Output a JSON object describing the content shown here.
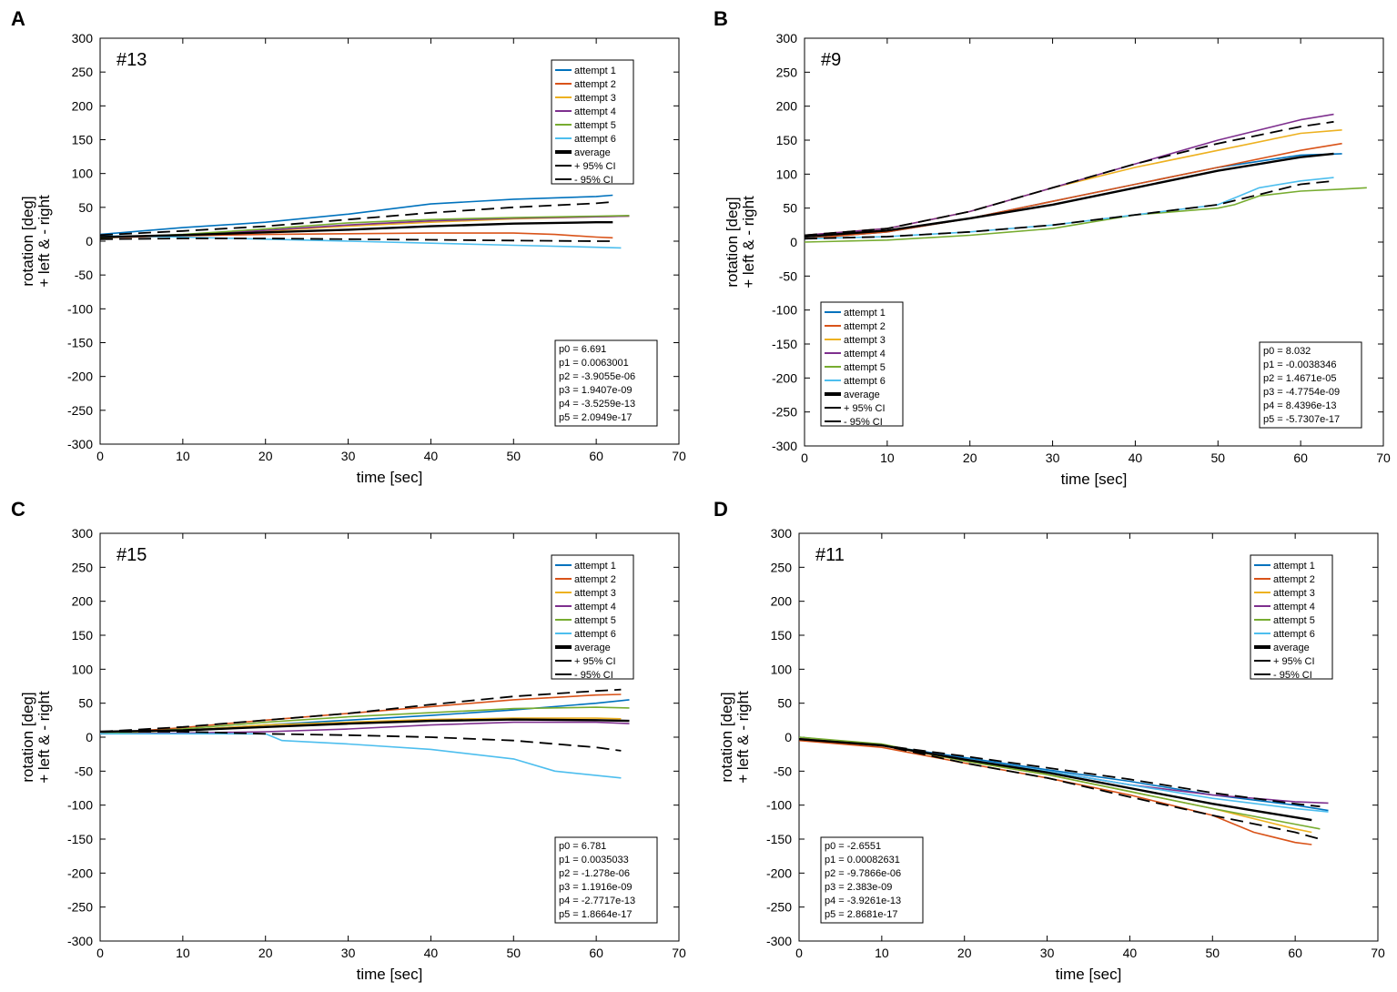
{
  "colors": {
    "attempt1": "#0072BD",
    "attempt2": "#D95319",
    "attempt3": "#EDB120",
    "attempt4": "#7E2F8E",
    "attempt5": "#77AC30",
    "attempt6": "#4DBEEE",
    "average": "#000000",
    "ci": "#000000"
  },
  "legend_labels": [
    "attempt 1",
    "attempt 2",
    "attempt 3",
    "attempt 4",
    "attempt 5",
    "attempt 6",
    "average",
    "+  95% CI",
    "- 95% CI"
  ],
  "chart_data": [
    {
      "panel": "A",
      "type": "line",
      "title": "#13",
      "xlabel": "time [sec]",
      "ylabel_line1": "rotation [deg]",
      "ylabel_line2": "+ left & - right",
      "xlim": [
        0,
        70
      ],
      "ylim": [
        -300,
        300
      ],
      "xticks": [
        0,
        10,
        20,
        30,
        40,
        50,
        60,
        70
      ],
      "yticks": [
        300,
        250,
        200,
        150,
        100,
        50,
        0,
        -50,
        -100,
        -150,
        -200,
        -250,
        -300
      ],
      "legend_position": "top-right",
      "params_position": "bottom-right",
      "params": [
        "p0 = 6.691",
        "p1 = 0.0063001",
        "p2 = -3.9055e-06",
        "p3 = 1.9407e-09",
        "p4 = -3.5259e-13",
        "p5 = 2.0949e-17"
      ],
      "series": [
        {
          "name": "attempt 1",
          "x": [
            0,
            5,
            10,
            20,
            30,
            40,
            50,
            60,
            62
          ],
          "y": [
            10,
            15,
            20,
            28,
            40,
            55,
            62,
            66,
            68
          ]
        },
        {
          "name": "attempt 2",
          "x": [
            0,
            10,
            20,
            30,
            40,
            50,
            55,
            60,
            62
          ],
          "y": [
            5,
            8,
            10,
            11,
            12,
            12,
            10,
            6,
            5
          ]
        },
        {
          "name": "attempt 3",
          "x": [
            0,
            10,
            20,
            30,
            40,
            50,
            60,
            64
          ],
          "y": [
            5,
            9,
            15,
            22,
            28,
            33,
            36,
            37
          ]
        },
        {
          "name": "attempt 4",
          "x": [
            0,
            10,
            20,
            30,
            40,
            50,
            60,
            64
          ],
          "y": [
            5,
            9,
            16,
            24,
            30,
            34,
            36,
            37
          ]
        },
        {
          "name": "attempt 5",
          "x": [
            0,
            10,
            20,
            30,
            40,
            50,
            60,
            64
          ],
          "y": [
            5,
            10,
            18,
            27,
            32,
            35,
            37,
            38
          ]
        },
        {
          "name": "attempt 6",
          "x": [
            0,
            10,
            20,
            30,
            40,
            50,
            60,
            63
          ],
          "y": [
            8,
            6,
            3,
            0,
            -3,
            -6,
            -9,
            -10
          ]
        },
        {
          "name": "average",
          "x": [
            0,
            10,
            20,
            30,
            40,
            50,
            60,
            62
          ],
          "y": [
            6,
            9,
            13,
            17,
            22,
            26,
            28,
            28
          ]
        },
        {
          "name": "+  95% CI",
          "x": [
            0,
            10,
            20,
            30,
            40,
            50,
            60,
            62
          ],
          "y": [
            9,
            15,
            22,
            32,
            42,
            50,
            56,
            58
          ]
        },
        {
          "name": "- 95% CI",
          "x": [
            0,
            10,
            20,
            30,
            40,
            50,
            60,
            62
          ],
          "y": [
            3,
            4,
            4,
            3,
            2,
            1,
            0,
            0
          ]
        }
      ]
    },
    {
      "panel": "B",
      "type": "line",
      "title": "#9",
      "xlabel": "time [sec]",
      "ylabel_line1": "rotation [deg]",
      "ylabel_line2": "+ left & - right",
      "xlim": [
        0,
        70
      ],
      "ylim": [
        -300,
        300
      ],
      "xticks": [
        0,
        10,
        20,
        30,
        40,
        50,
        60,
        70
      ],
      "yticks": [
        300,
        250,
        200,
        150,
        100,
        50,
        0,
        -50,
        -100,
        -150,
        -200,
        -250,
        -300
      ],
      "legend_position": "bottom-left",
      "params_position": "bottom-right",
      "params": [
        "p0 = 8.032",
        "p1 = -0.0038346",
        "p2 = 1.4671e-05",
        "p3 = -4.7754e-09",
        "p4 = 8.4396e-13",
        "p5 = -5.7307e-17"
      ],
      "series": [
        {
          "name": "attempt 1",
          "x": [
            0,
            10,
            20,
            30,
            40,
            50,
            60,
            65
          ],
          "y": [
            5,
            15,
            35,
            60,
            85,
            110,
            128,
            130
          ]
        },
        {
          "name": "attempt 2",
          "x": [
            0,
            10,
            20,
            30,
            40,
            50,
            60,
            65
          ],
          "y": [
            5,
            15,
            35,
            60,
            85,
            110,
            135,
            145
          ]
        },
        {
          "name": "attempt 3",
          "x": [
            0,
            10,
            20,
            30,
            40,
            50,
            60,
            65
          ],
          "y": [
            10,
            20,
            45,
            80,
            110,
            135,
            160,
            165
          ]
        },
        {
          "name": "attempt 4",
          "x": [
            0,
            10,
            20,
            30,
            40,
            50,
            60,
            64
          ],
          "y": [
            10,
            20,
            45,
            80,
            115,
            150,
            180,
            188
          ]
        },
        {
          "name": "attempt 5",
          "x": [
            0,
            10,
            20,
            30,
            40,
            50,
            52,
            55,
            60,
            65,
            68
          ],
          "y": [
            0,
            3,
            10,
            20,
            40,
            50,
            55,
            68,
            75,
            78,
            80
          ]
        },
        {
          "name": "attempt 6",
          "x": [
            0,
            10,
            20,
            30,
            40,
            50,
            52,
            55,
            60,
            64
          ],
          "y": [
            5,
            8,
            15,
            25,
            40,
            55,
            65,
            80,
            90,
            95
          ]
        },
        {
          "name": "average",
          "x": [
            0,
            10,
            20,
            30,
            40,
            50,
            60,
            64
          ],
          "y": [
            8,
            17,
            35,
            55,
            80,
            105,
            125,
            130
          ]
        },
        {
          "name": "+  95% CI",
          "x": [
            0,
            10,
            20,
            30,
            40,
            50,
            60,
            64
          ],
          "y": [
            10,
            20,
            45,
            80,
            115,
            145,
            170,
            177
          ]
        },
        {
          "name": "- 95% CI",
          "x": [
            0,
            10,
            20,
            30,
            40,
            50,
            55,
            60,
            64
          ],
          "y": [
            5,
            8,
            15,
            25,
            40,
            55,
            70,
            85,
            90
          ]
        }
      ]
    },
    {
      "panel": "C",
      "type": "line",
      "title": "#15",
      "xlabel": "time [sec]",
      "ylabel_line1": "rotation [deg]",
      "ylabel_line2": "+ left & - right",
      "xlim": [
        0,
        70
      ],
      "ylim": [
        -300,
        300
      ],
      "xticks": [
        0,
        10,
        20,
        30,
        40,
        50,
        60,
        70
      ],
      "yticks": [
        300,
        250,
        200,
        150,
        100,
        50,
        0,
        -50,
        -100,
        -150,
        -200,
        -250,
        -300
      ],
      "legend_position": "top-right",
      "params_position": "bottom-right",
      "params": [
        "p0 = 6.781",
        "p1 = 0.0035033",
        "p2 = -1.278e-06",
        "p3 = 1.1916e-09",
        "p4 = -2.7717e-13",
        "p5 = 1.8664e-17"
      ],
      "series": [
        {
          "name": "attempt 1",
          "x": [
            0,
            10,
            20,
            30,
            40,
            50,
            60,
            64
          ],
          "y": [
            5,
            10,
            18,
            25,
            32,
            40,
            50,
            55
          ]
        },
        {
          "name": "attempt 2",
          "x": [
            0,
            10,
            20,
            30,
            40,
            50,
            60,
            63
          ],
          "y": [
            5,
            14,
            25,
            35,
            45,
            55,
            62,
            63
          ]
        },
        {
          "name": "attempt 3",
          "x": [
            0,
            10,
            20,
            30,
            40,
            50,
            60,
            63
          ],
          "y": [
            5,
            10,
            18,
            22,
            26,
            28,
            28,
            27
          ]
        },
        {
          "name": "attempt 4",
          "x": [
            0,
            10,
            20,
            30,
            40,
            50,
            60,
            64
          ],
          "y": [
            5,
            6,
            8,
            12,
            18,
            22,
            22,
            20
          ]
        },
        {
          "name": "attempt 5",
          "x": [
            0,
            10,
            20,
            30,
            40,
            50,
            60,
            64
          ],
          "y": [
            5,
            12,
            22,
            30,
            36,
            42,
            44,
            43
          ]
        },
        {
          "name": "attempt 6",
          "x": [
            0,
            10,
            20,
            22,
            30,
            40,
            50,
            55,
            63
          ],
          "y": [
            5,
            5,
            5,
            -5,
            -10,
            -18,
            -32,
            -50,
            -60
          ]
        },
        {
          "name": "average",
          "x": [
            0,
            10,
            20,
            30,
            40,
            50,
            60,
            64
          ],
          "y": [
            8,
            10,
            15,
            20,
            24,
            26,
            25,
            24
          ]
        },
        {
          "name": "+  95% CI",
          "x": [
            0,
            10,
            20,
            30,
            40,
            50,
            60,
            63
          ],
          "y": [
            8,
            15,
            25,
            35,
            48,
            60,
            68,
            70
          ]
        },
        {
          "name": "- 95% CI",
          "x": [
            0,
            10,
            20,
            30,
            40,
            50,
            60,
            63
          ],
          "y": [
            8,
            8,
            5,
            3,
            0,
            -5,
            -15,
            -20
          ]
        }
      ]
    },
    {
      "panel": "D",
      "type": "line",
      "title": "#11",
      "xlabel": "time [sec]",
      "ylabel_line1": "rotation [deg]",
      "ylabel_line2": "+ left & - right",
      "xlim": [
        0,
        70
      ],
      "ylim": [
        -300,
        300
      ],
      "xticks": [
        0,
        10,
        20,
        30,
        40,
        50,
        60,
        70
      ],
      "yticks": [
        300,
        250,
        200,
        150,
        100,
        50,
        0,
        -50,
        -100,
        -150,
        -200,
        -250,
        -300
      ],
      "legend_position": "top-right",
      "params_position": "bottom-left",
      "params": [
        "p0 = -2.6551",
        "p1 = 0.00082631",
        "p2 = -9.7866e-06",
        "p3 = 2.383e-09",
        "p4 = -3.9261e-13",
        "p5 = 2.8681e-17"
      ],
      "series": [
        {
          "name": "attempt 1",
          "x": [
            0,
            10,
            20,
            30,
            40,
            50,
            60,
            64
          ],
          "y": [
            0,
            -12,
            -30,
            -48,
            -65,
            -85,
            -100,
            -108
          ]
        },
        {
          "name": "attempt 2",
          "x": [
            0,
            10,
            20,
            30,
            40,
            50,
            55,
            60,
            62
          ],
          "y": [
            -5,
            -15,
            -38,
            -60,
            -85,
            -115,
            -140,
            -155,
            -158
          ]
        },
        {
          "name": "attempt 3",
          "x": [
            0,
            10,
            20,
            30,
            40,
            50,
            60,
            62
          ],
          "y": [
            -2,
            -12,
            -35,
            -55,
            -80,
            -105,
            -135,
            -140
          ]
        },
        {
          "name": "attempt 4",
          "x": [
            0,
            10,
            20,
            30,
            40,
            50,
            60,
            64
          ],
          "y": [
            -2,
            -12,
            -32,
            -50,
            -70,
            -85,
            -95,
            -97
          ]
        },
        {
          "name": "attempt 5",
          "x": [
            0,
            10,
            20,
            30,
            40,
            50,
            60,
            63
          ],
          "y": [
            0,
            -10,
            -35,
            -55,
            -80,
            -105,
            -128,
            -135
          ]
        },
        {
          "name": "attempt 6",
          "x": [
            0,
            10,
            20,
            30,
            40,
            50,
            60,
            64
          ],
          "y": [
            -3,
            -12,
            -32,
            -50,
            -70,
            -90,
            -105,
            -110
          ]
        },
        {
          "name": "average",
          "x": [
            0,
            10,
            20,
            30,
            40,
            50,
            60,
            62
          ],
          "y": [
            -3,
            -12,
            -33,
            -52,
            -75,
            -98,
            -118,
            -122
          ]
        },
        {
          "name": "+  95% CI",
          "x": [
            0,
            10,
            20,
            30,
            40,
            50,
            60,
            63
          ],
          "y": [
            -3,
            -12,
            -28,
            -45,
            -62,
            -82,
            -98,
            -102
          ]
        },
        {
          "name": "- 95% CI",
          "x": [
            0,
            10,
            20,
            30,
            40,
            50,
            60,
            63
          ],
          "y": [
            -3,
            -12,
            -38,
            -60,
            -88,
            -115,
            -140,
            -150
          ]
        }
      ]
    }
  ]
}
